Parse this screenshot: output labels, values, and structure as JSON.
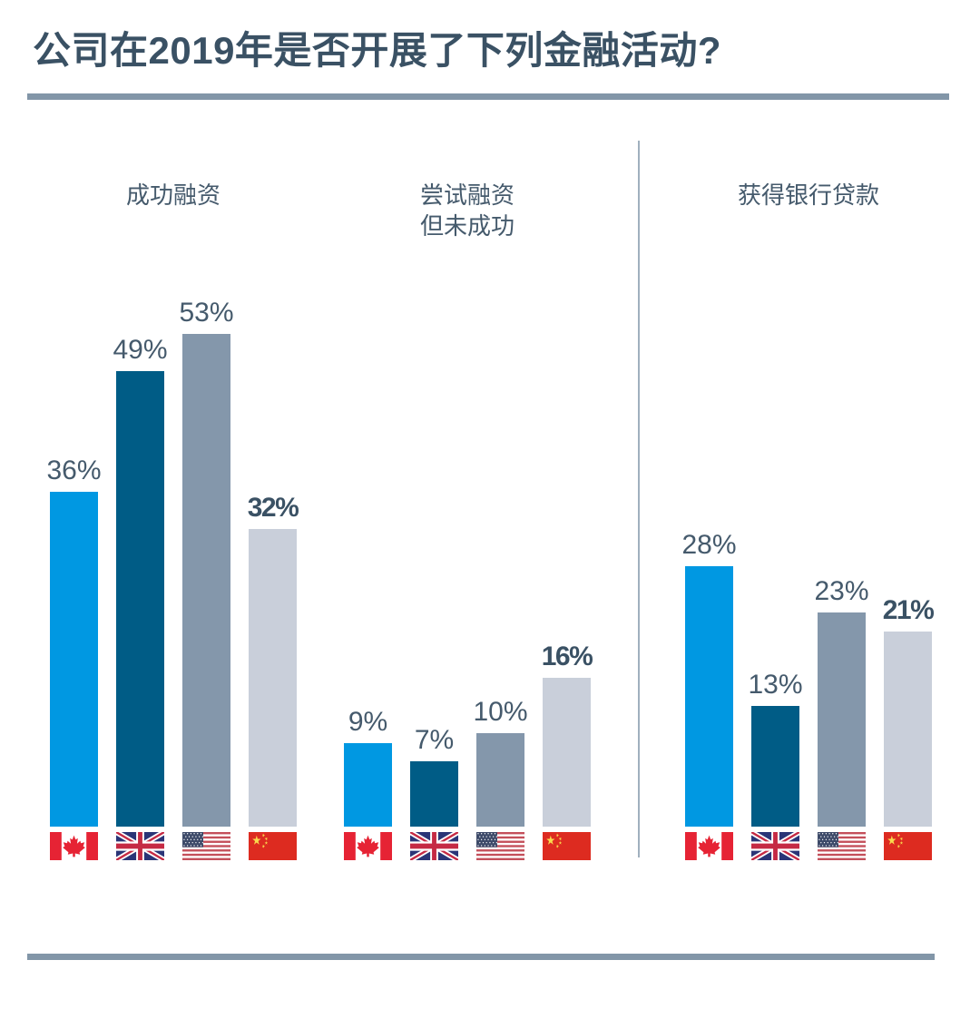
{
  "title": "公司在2019年是否开展了下列金融活动?",
  "colors": {
    "title_text": "#3A5164",
    "value_text": "#455A6C",
    "rule": "#8296A8",
    "divider": "#A0B0BE",
    "background": "#FFFFFF"
  },
  "chart_data": {
    "type": "bar",
    "title": "公司在2019年是否开展了下列金融活动?",
    "unit": "percent",
    "ylim": [
      0,
      60
    ],
    "legend": "country flags displayed below each bar",
    "countries": [
      {
        "id": "canada",
        "name": "Canada",
        "color": "#0098E2"
      },
      {
        "id": "uk",
        "name": "United Kingdom",
        "color": "#005C86"
      },
      {
        "id": "usa",
        "name": "United States",
        "color": "#8497AB"
      },
      {
        "id": "china",
        "name": "China",
        "color": "#C9CFDA"
      }
    ],
    "categories": [
      "成功融资",
      "尝试融资但未成功",
      "获得银行贷款"
    ],
    "series": [
      {
        "name": "Canada",
        "values": [
          36,
          9,
          28
        ]
      },
      {
        "name": "United Kingdom",
        "values": [
          49,
          7,
          13
        ]
      },
      {
        "name": "United States",
        "values": [
          53,
          10,
          23
        ]
      },
      {
        "name": "China",
        "values": [
          32,
          16,
          21
        ]
      }
    ],
    "groups": [
      {
        "category": "成功融资",
        "label_lines": [
          "成功融资"
        ],
        "bars": [
          {
            "country": "canada",
            "value": 36,
            "label": "36%",
            "bold": false
          },
          {
            "country": "uk",
            "value": 49,
            "label": "49%",
            "bold": false
          },
          {
            "country": "usa",
            "value": 53,
            "label": "53%",
            "bold": false
          },
          {
            "country": "china",
            "value": 32,
            "label": "32%",
            "bold": true
          }
        ]
      },
      {
        "category": "尝试融资但未成功",
        "label_lines": [
          "尝试融资",
          "但未成功"
        ],
        "bars": [
          {
            "country": "canada",
            "value": 9,
            "label": "9%",
            "bold": false
          },
          {
            "country": "uk",
            "value": 7,
            "label": "7%",
            "bold": false
          },
          {
            "country": "usa",
            "value": 10,
            "label": "10%",
            "bold": false
          },
          {
            "country": "china",
            "value": 16,
            "label": "16%",
            "bold": true
          }
        ]
      },
      {
        "category": "获得银行贷款",
        "label_lines": [
          "获得银行贷款"
        ],
        "bars": [
          {
            "country": "canada",
            "value": 28,
            "label": "28%",
            "bold": false
          },
          {
            "country": "uk",
            "value": 13,
            "label": "13%",
            "bold": false
          },
          {
            "country": "usa",
            "value": 23,
            "label": "23%",
            "bold": false
          },
          {
            "country": "china",
            "value": 21,
            "label": "21%",
            "bold": true
          }
        ]
      }
    ]
  }
}
